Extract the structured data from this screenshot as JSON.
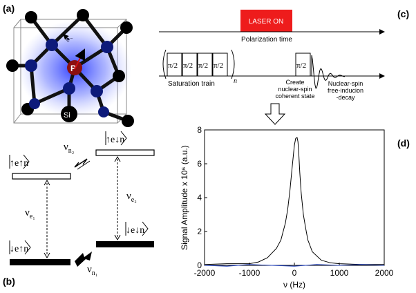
{
  "panels": {
    "a": {
      "label": "(a)",
      "si_label": "Si",
      "p_label": "P",
      "electron_label": "e⁻"
    },
    "b": {
      "label": "(b)",
      "states": [
        "↑e↑n",
        "↑e↓n",
        "↓e↑n",
        "↓e↓n"
      ],
      "nu_e1": "ν",
      "nu_e1_sub": "e₁",
      "nu_e2": "ν",
      "nu_e2_sub": "e₂",
      "nu_n1": "ν",
      "nu_n1_sub": "n₁",
      "nu_n2": "ν",
      "nu_n2_sub": "n₂"
    },
    "c": {
      "label": "(c)",
      "laser": "LASER ON",
      "laser_color": "#ee1c1c",
      "polarization_time": "Polarization time",
      "pulse": "π/2",
      "saturation_train": "Saturation train",
      "n_sub": "n",
      "create_state": [
        "Create",
        "nuclear-spin",
        "coherent state"
      ],
      "fid": [
        "Nuclear-spin",
        "free-inducion",
        "-decay"
      ]
    },
    "d": {
      "label": "(d)"
    }
  },
  "chart_data": {
    "type": "line",
    "xlabel": "ν (Hz)",
    "ylabel": "Signal Amplitude x 10⁶ (a.u.)",
    "xlim": [
      -2000,
      2000
    ],
    "ylim": [
      0,
      8
    ],
    "xticks": [
      "-2000",
      "-1000",
      "0",
      "1000",
      "2000"
    ],
    "yticks": [
      "0",
      "2",
      "4",
      "6",
      "8"
    ],
    "series": [
      {
        "color": "#000000",
        "x": [
          -2000,
          -1500,
          -1000,
          -800,
          -600,
          -400,
          -300,
          -200,
          -150,
          -100,
          -50,
          0,
          30,
          60,
          80,
          100,
          120,
          150,
          200,
          250,
          300,
          400,
          600,
          800,
          1000,
          1500,
          2000
        ],
        "y": [
          0.05,
          0.1,
          0.1,
          0.2,
          0.45,
          1.0,
          1.5,
          2.5,
          3.3,
          4.4,
          5.8,
          7.1,
          7.5,
          7.55,
          7.3,
          6.5,
          5.5,
          4.3,
          3.0,
          2.2,
          1.5,
          0.8,
          0.3,
          0.15,
          0.1,
          0.05,
          0.05
        ]
      },
      {
        "color": "#1f3fbf",
        "x": [
          -2000,
          -1500,
          -1000,
          -500,
          0,
          500,
          1000,
          1500,
          2000
        ],
        "y": [
          0.0,
          -0.05,
          0.05,
          0.0,
          -0.05,
          0.05,
          0.0,
          0.05,
          0.0
        ]
      }
    ]
  }
}
